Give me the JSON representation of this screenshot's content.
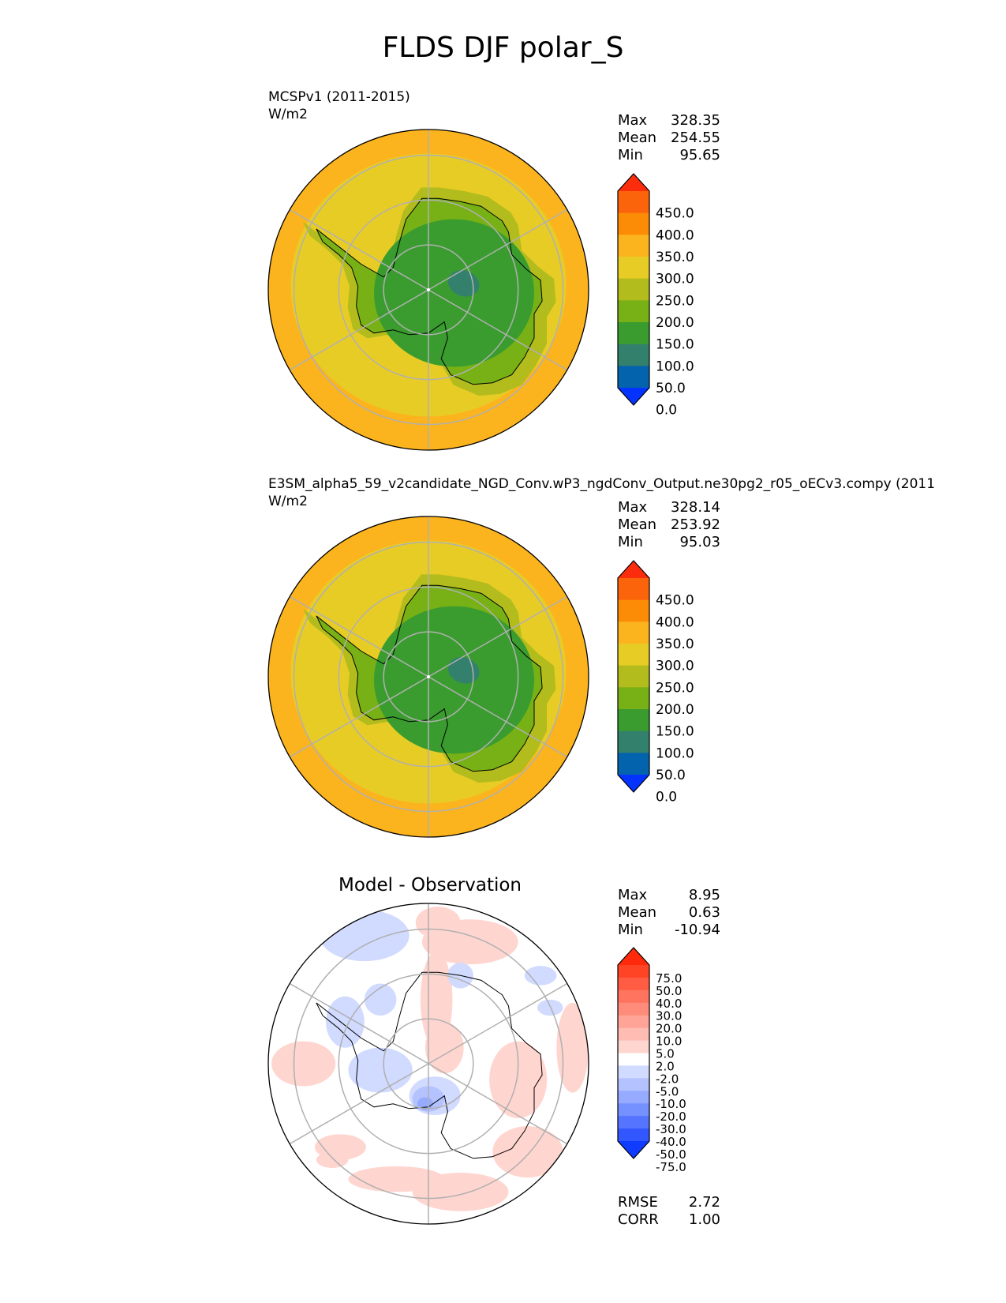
{
  "figure": {
    "title": "FLDS DJF polar_S"
  },
  "colors": {
    "field_levels": [
      "#0433ff",
      "#0463ad",
      "#33816c",
      "#3a9c2f",
      "#77b115",
      "#b2bc1d",
      "#e8cc26",
      "#fcb41e",
      "#fc8c06",
      "#fc640c",
      "#fc2d0c"
    ],
    "diff_levels": [
      "#0f3cff",
      "#3357ff",
      "#5574ff",
      "#7590ff",
      "#96abff",
      "#b4c2ff",
      "#d1daff",
      "#ffffff",
      "#ffd5cf",
      "#ffbcb3",
      "#ffa497",
      "#ff8c7b",
      "#ff745f",
      "#ff5c43",
      "#ff4426",
      "#ff2a0c"
    ],
    "coastline": "#000000",
    "grid": "#b0b0b0"
  },
  "chart_data": [
    {
      "type": "heatmap",
      "projection": "polar stereographic (south)",
      "title": "MCSPv1 (2011-2015)",
      "units": "W/m2",
      "stats": {
        "max_label": "Max",
        "max": "328.35",
        "mean_label": "Mean",
        "mean": "254.55",
        "min_label": "Min",
        "min": "95.65"
      },
      "colorbar": {
        "ticks": [
          "450.0",
          "400.0",
          "350.0",
          "300.0",
          "250.0",
          "200.0",
          "150.0",
          "100.0",
          "50.0",
          "0.0"
        ],
        "extend": "both"
      }
    },
    {
      "type": "heatmap",
      "projection": "polar stereographic (south)",
      "title": "E3SM_alpha5_59_v2candidate_NGD_Conv.wP3_ngdConv_Output.ne30pg2_r05_oECv3.compy (2011",
      "units": "W/m2",
      "stats": {
        "max_label": "Max",
        "max": "328.14",
        "mean_label": "Mean",
        "mean": "253.92",
        "min_label": "Min",
        "min": "95.03"
      },
      "colorbar": {
        "ticks": [
          "450.0",
          "400.0",
          "350.0",
          "300.0",
          "250.0",
          "200.0",
          "150.0",
          "100.0",
          "50.0",
          "0.0"
        ],
        "extend": "both"
      }
    },
    {
      "type": "heatmap",
      "projection": "polar stereographic (south)",
      "title": "Model - Observation",
      "stats": {
        "max_label": "Max",
        "max": "8.95",
        "mean_label": "Mean",
        "mean": "0.63",
        "min_label": "Min",
        "min": "-10.94"
      },
      "colorbar": {
        "ticks": [
          "75.0",
          "50.0",
          "40.0",
          "30.0",
          "20.0",
          "10.0",
          "5.0",
          "2.0",
          "-2.0",
          "-5.0",
          "-10.0",
          "-20.0",
          "-30.0",
          "-40.0",
          "-50.0",
          "-75.0"
        ],
        "extend": "both"
      },
      "metrics": {
        "rmse_label": "RMSE",
        "rmse": "2.72",
        "corr_label": "CORR",
        "corr": "1.00"
      }
    }
  ]
}
